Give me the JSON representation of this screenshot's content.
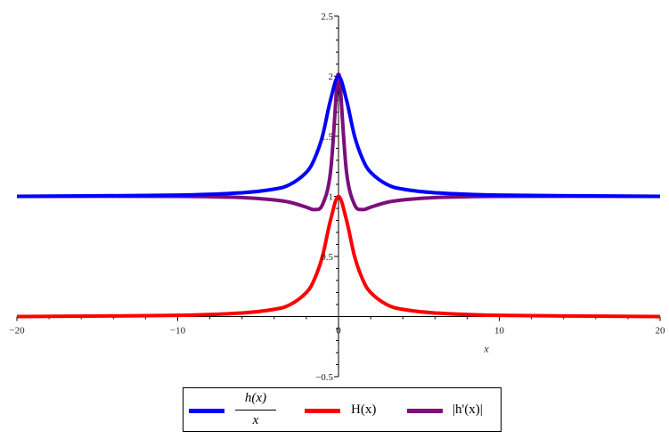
{
  "chart_data": {
    "type": "line",
    "xlabel": "x",
    "xlim": [
      -20,
      20
    ],
    "ylim": [
      -0.5,
      2.5
    ],
    "x_ticks": [
      -20,
      -10,
      0,
      10,
      20
    ],
    "x_tick_labels": [
      "−20",
      "−10",
      "0",
      "10",
      "20"
    ],
    "y_ticks": [
      -0.5,
      0.5,
      1,
      1.5,
      2,
      2.5
    ],
    "y_tick_labels": [
      "−0.5",
      "0.5",
      "1",
      "1.5",
      "2",
      "2.5"
    ],
    "grid": false,
    "legend_position": "bottom",
    "series": [
      {
        "name": "h(x)/x",
        "legend_numerator": "h(x)",
        "legend_denominator": "x",
        "color": "#0000ff",
        "x": [
          -20,
          -10,
          -6,
          -4,
          -3,
          -2,
          -1.5,
          -1,
          -0.5,
          0,
          0.5,
          1,
          1.5,
          2,
          3,
          4,
          6,
          10,
          20
        ],
        "y": [
          1.0,
          1.01,
          1.03,
          1.06,
          1.1,
          1.2,
          1.31,
          1.5,
          1.8,
          2.0,
          1.8,
          1.5,
          1.31,
          1.2,
          1.1,
          1.06,
          1.03,
          1.01,
          1.0
        ]
      },
      {
        "name": "H(x)",
        "color": "#ff0000",
        "x": [
          -20,
          -10,
          -6,
          -4,
          -3,
          -2,
          -1.5,
          -1,
          -0.5,
          0,
          0.5,
          1,
          1.5,
          2,
          3,
          4,
          6,
          10,
          20
        ],
        "y": [
          0.0,
          0.01,
          0.03,
          0.06,
          0.1,
          0.2,
          0.31,
          0.5,
          0.8,
          1.0,
          0.8,
          0.5,
          0.31,
          0.2,
          0.1,
          0.06,
          0.03,
          0.01,
          0.0
        ]
      },
      {
        "name": "|h'(x)|",
        "color": "#7b0f7b",
        "x": [
          -20,
          -10,
          -6,
          -4,
          -3,
          -2,
          -1.5,
          -1,
          -0.5,
          -0.1,
          0,
          0.1,
          0.5,
          1,
          1.5,
          2,
          3,
          4,
          6,
          10,
          20
        ],
        "y": [
          1.0,
          1.0,
          0.99,
          0.97,
          0.95,
          0.91,
          0.89,
          0.93,
          1.2,
          1.93,
          2.0,
          1.93,
          1.2,
          0.93,
          0.89,
          0.91,
          0.95,
          0.97,
          0.99,
          1.0,
          1.0
        ]
      }
    ]
  }
}
